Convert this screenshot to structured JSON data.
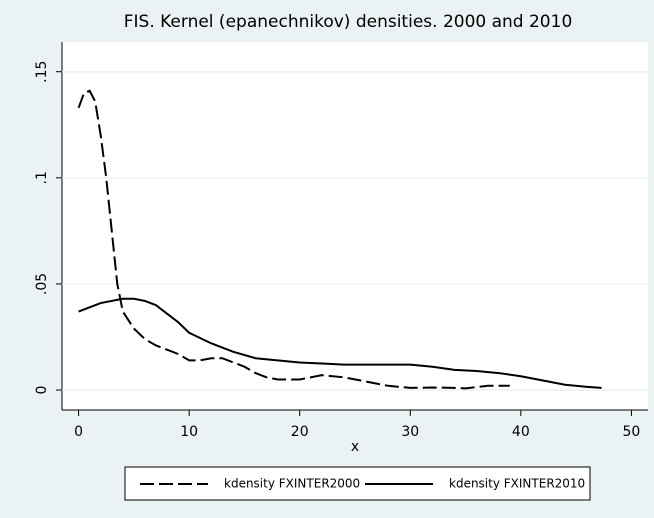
{
  "chart_data": {
    "type": "line",
    "title": "FIS. Kernel (epanechnikov) densities. 2000 and 2010",
    "xlabel": "x",
    "xlim": [
      -1.5,
      51.5
    ],
    "ylim": [
      -0.0094,
      0.164
    ],
    "xticks": [
      0,
      10,
      20,
      30,
      40,
      50
    ],
    "yticks": [
      0,
      {
        "value": 0.05,
        "label": ".05"
      },
      {
        "value": 0.1,
        "label": ".1"
      },
      {
        "value": 0.15,
        "label": ".15"
      }
    ],
    "grid": true,
    "legend": "bottom",
    "series": [
      {
        "name": "kdensity FXINTER2000",
        "color": "#000000",
        "dash": true,
        "x": [
          0,
          0.5,
          1,
          1.5,
          2,
          2.5,
          3,
          3.5,
          4,
          5,
          6,
          7,
          8,
          9,
          10,
          11,
          12,
          13,
          14,
          15,
          16,
          17,
          18,
          20,
          22,
          24,
          26,
          28,
          30,
          32,
          34,
          35,
          37,
          39
        ],
        "values": [
          0.133,
          0.14,
          0.141,
          0.136,
          0.12,
          0.1,
          0.075,
          0.05,
          0.037,
          0.029,
          0.024,
          0.021,
          0.019,
          0.017,
          0.014,
          0.014,
          0.015,
          0.015,
          0.013,
          0.011,
          0.008,
          0.006,
          0.005,
          0.005,
          0.007,
          0.006,
          0.004,
          0.002,
          0.001,
          0.0012,
          0.001,
          0.0008,
          0.002,
          0.002
        ]
      },
      {
        "name": "kdensity FXINTER2010",
        "color": "#000000",
        "dash": false,
        "x": [
          0,
          2,
          4,
          5,
          6,
          7,
          8,
          9,
          10,
          12,
          14,
          16,
          18,
          20,
          22,
          24,
          26,
          28,
          30,
          32,
          34,
          36,
          38,
          40,
          42,
          44,
          46,
          47.3
        ],
        "values": [
          0.037,
          0.041,
          0.043,
          0.043,
          0.042,
          0.04,
          0.036,
          0.032,
          0.027,
          0.022,
          0.018,
          0.015,
          0.014,
          0.013,
          0.0125,
          0.012,
          0.012,
          0.012,
          0.012,
          0.011,
          0.0095,
          0.009,
          0.008,
          0.0065,
          0.0045,
          0.0025,
          0.0015,
          0.001
        ]
      }
    ]
  }
}
